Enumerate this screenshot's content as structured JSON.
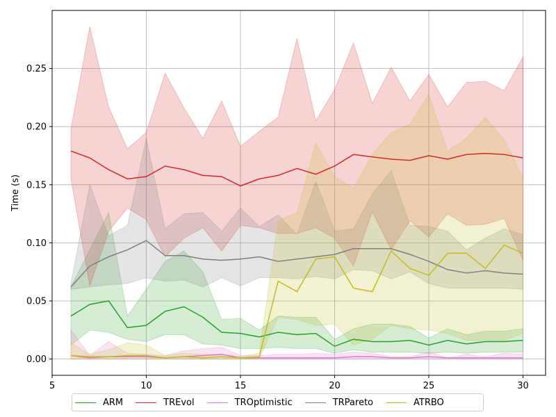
{
  "chart_data": {
    "type": "line",
    "title": "",
    "xlabel": "",
    "ylabel": "Time (s)",
    "xlim": [
      5,
      31.2
    ],
    "ylim": [
      -0.014,
      0.3
    ],
    "xticks": [
      5,
      10,
      15,
      20,
      25,
      30
    ],
    "yticks": [
      0.0,
      0.05,
      0.1,
      0.15,
      0.2,
      0.25
    ],
    "ytick_labels": [
      "0.00",
      "0.05",
      "0.10",
      "0.15",
      "0.20",
      "0.25"
    ],
    "grid": true,
    "legend_position": "bottom-outside",
    "x": [
      6,
      7,
      8,
      9,
      10,
      11,
      12,
      13,
      14,
      15,
      16,
      17,
      18,
      19,
      20,
      21,
      22,
      23,
      24,
      25,
      26,
      27,
      28,
      29,
      30
    ],
    "series": [
      {
        "name": "ARM",
        "color": "#2ca02c",
        "values": [
          0.037,
          0.047,
          0.05,
          0.027,
          0.029,
          0.041,
          0.045,
          0.036,
          0.023,
          0.022,
          0.019,
          0.023,
          0.021,
          0.022,
          0.011,
          0.017,
          0.015,
          0.015,
          0.016,
          0.012,
          0.016,
          0.013,
          0.015,
          0.015,
          0.016
        ],
        "lower": [
          0.012,
          0.025,
          0.023,
          0.017,
          0.015,
          0.021,
          0.021,
          0.013,
          0.012,
          0.009,
          0.009,
          0.01,
          0.009,
          0.009,
          0.005,
          0.008,
          0.006,
          0.006,
          0.006,
          0.005,
          0.006,
          0.005,
          0.006,
          0.006,
          0.006
        ],
        "upper": [
          0.062,
          0.094,
          0.126,
          0.037,
          0.06,
          0.084,
          0.093,
          0.075,
          0.034,
          0.035,
          0.025,
          0.037,
          0.036,
          0.036,
          0.017,
          0.026,
          0.03,
          0.03,
          0.028,
          0.018,
          0.026,
          0.021,
          0.024,
          0.024,
          0.026
        ]
      },
      {
        "name": "TREvol",
        "color": "#d62728",
        "values": [
          0.179,
          0.173,
          0.163,
          0.155,
          0.157,
          0.166,
          0.163,
          0.158,
          0.157,
          0.149,
          0.155,
          0.158,
          0.164,
          0.159,
          0.166,
          0.176,
          0.174,
          0.172,
          0.171,
          0.175,
          0.172,
          0.176,
          0.177,
          0.176,
          0.173
        ],
        "lower": [
          0.155,
          0.063,
          0.11,
          0.13,
          0.12,
          0.088,
          0.104,
          0.113,
          0.093,
          0.115,
          0.113,
          0.108,
          0.108,
          0.113,
          0.104,
          0.08,
          0.127,
          0.094,
          0.119,
          0.105,
          0.125,
          0.115,
          0.116,
          0.121,
          0.085
        ],
        "upper": [
          0.198,
          0.286,
          0.217,
          0.181,
          0.195,
          0.246,
          0.216,
          0.19,
          0.222,
          0.183,
          0.196,
          0.208,
          0.276,
          0.205,
          0.232,
          0.272,
          0.22,
          0.251,
          0.222,
          0.245,
          0.217,
          0.238,
          0.239,
          0.231,
          0.26
        ]
      },
      {
        "name": "TROptimistic",
        "color": "#e377c2",
        "values": [
          0.003,
          0.001,
          0.002,
          0.002,
          0.002,
          0.001,
          0.002,
          0.003,
          0.004,
          0.001,
          0.001,
          0.001,
          0.001,
          0.001,
          0.001,
          0.002,
          0.002,
          0.001,
          0.001,
          0.002,
          0.001,
          0.001,
          0.001,
          0.001,
          0.001
        ],
        "lower": [
          0.0,
          0.0,
          0.0,
          0.0,
          0.0,
          0.0,
          0.0,
          0.0,
          0.0,
          0.0,
          0.0,
          0.0,
          0.0,
          0.0,
          0.0,
          0.0,
          0.0,
          0.0,
          0.0,
          0.0,
          0.0,
          0.0,
          0.0,
          0.0,
          0.0
        ],
        "upper": [
          0.025,
          0.003,
          0.015,
          0.005,
          0.004,
          0.003,
          0.007,
          0.009,
          0.01,
          0.003,
          0.003,
          0.004,
          0.004,
          0.005,
          0.004,
          0.006,
          0.005,
          0.002,
          0.002,
          0.006,
          0.001,
          0.004,
          0.002,
          0.005,
          0.004
        ]
      },
      {
        "name": "TRPareto",
        "color": "#7f7f7f",
        "values": [
          0.062,
          0.08,
          0.088,
          0.094,
          0.102,
          0.089,
          0.089,
          0.086,
          0.085,
          0.086,
          0.088,
          0.084,
          0.086,
          0.088,
          0.09,
          0.095,
          0.095,
          0.095,
          0.09,
          0.084,
          0.077,
          0.074,
          0.076,
          0.074,
          0.073
        ],
        "lower": [
          0.06,
          0.062,
          0.064,
          0.065,
          0.07,
          0.067,
          0.068,
          0.062,
          0.07,
          0.063,
          0.07,
          0.07,
          0.069,
          0.071,
          0.069,
          0.077,
          0.076,
          0.069,
          0.075,
          0.065,
          0.061,
          0.061,
          0.061,
          0.061,
          0.06
        ],
        "upper": [
          0.065,
          0.15,
          0.106,
          0.115,
          0.19,
          0.112,
          0.125,
          0.126,
          0.11,
          0.13,
          0.114,
          0.124,
          0.107,
          0.153,
          0.11,
          0.112,
          0.142,
          0.162,
          0.115,
          0.114,
          0.11,
          0.094,
          0.104,
          0.112,
          0.107
        ]
      },
      {
        "name": "ATRBO",
        "color": "#bcbd22",
        "values": [
          0.003,
          0.002,
          0.002,
          0.003,
          0.003,
          0.001,
          0.002,
          0.001,
          0.002,
          0.001,
          0.002,
          0.067,
          0.058,
          0.086,
          0.088,
          0.061,
          0.058,
          0.093,
          0.078,
          0.072,
          0.091,
          0.091,
          0.078,
          0.098,
          0.091
        ],
        "lower": [
          0.0,
          0.0,
          0.0,
          0.0,
          0.0,
          0.0,
          0.0,
          0.0,
          0.0,
          0.0,
          0.0,
          0.036,
          0.034,
          0.029,
          0.03,
          0.012,
          0.017,
          0.029,
          0.026,
          0.025,
          0.022,
          0.016,
          0.016,
          0.016,
          0.022
        ],
        "upper": [
          0.014,
          0.004,
          0.008,
          0.014,
          0.012,
          0.003,
          0.005,
          0.004,
          0.004,
          0.002,
          0.005,
          0.119,
          0.126,
          0.186,
          0.157,
          0.147,
          0.176,
          0.195,
          0.202,
          0.228,
          0.179,
          0.19,
          0.208,
          0.189,
          0.156
        ]
      }
    ]
  },
  "legend": {
    "items": [
      {
        "label": "ARM",
        "color": "#2ca02c"
      },
      {
        "label": "TREvol",
        "color": "#d62728"
      },
      {
        "label": "TROptimistic",
        "color": "#e377c2"
      },
      {
        "label": "TRPareto",
        "color": "#7f7f7f"
      },
      {
        "label": "ATRBO",
        "color": "#bcbd22"
      }
    ]
  }
}
